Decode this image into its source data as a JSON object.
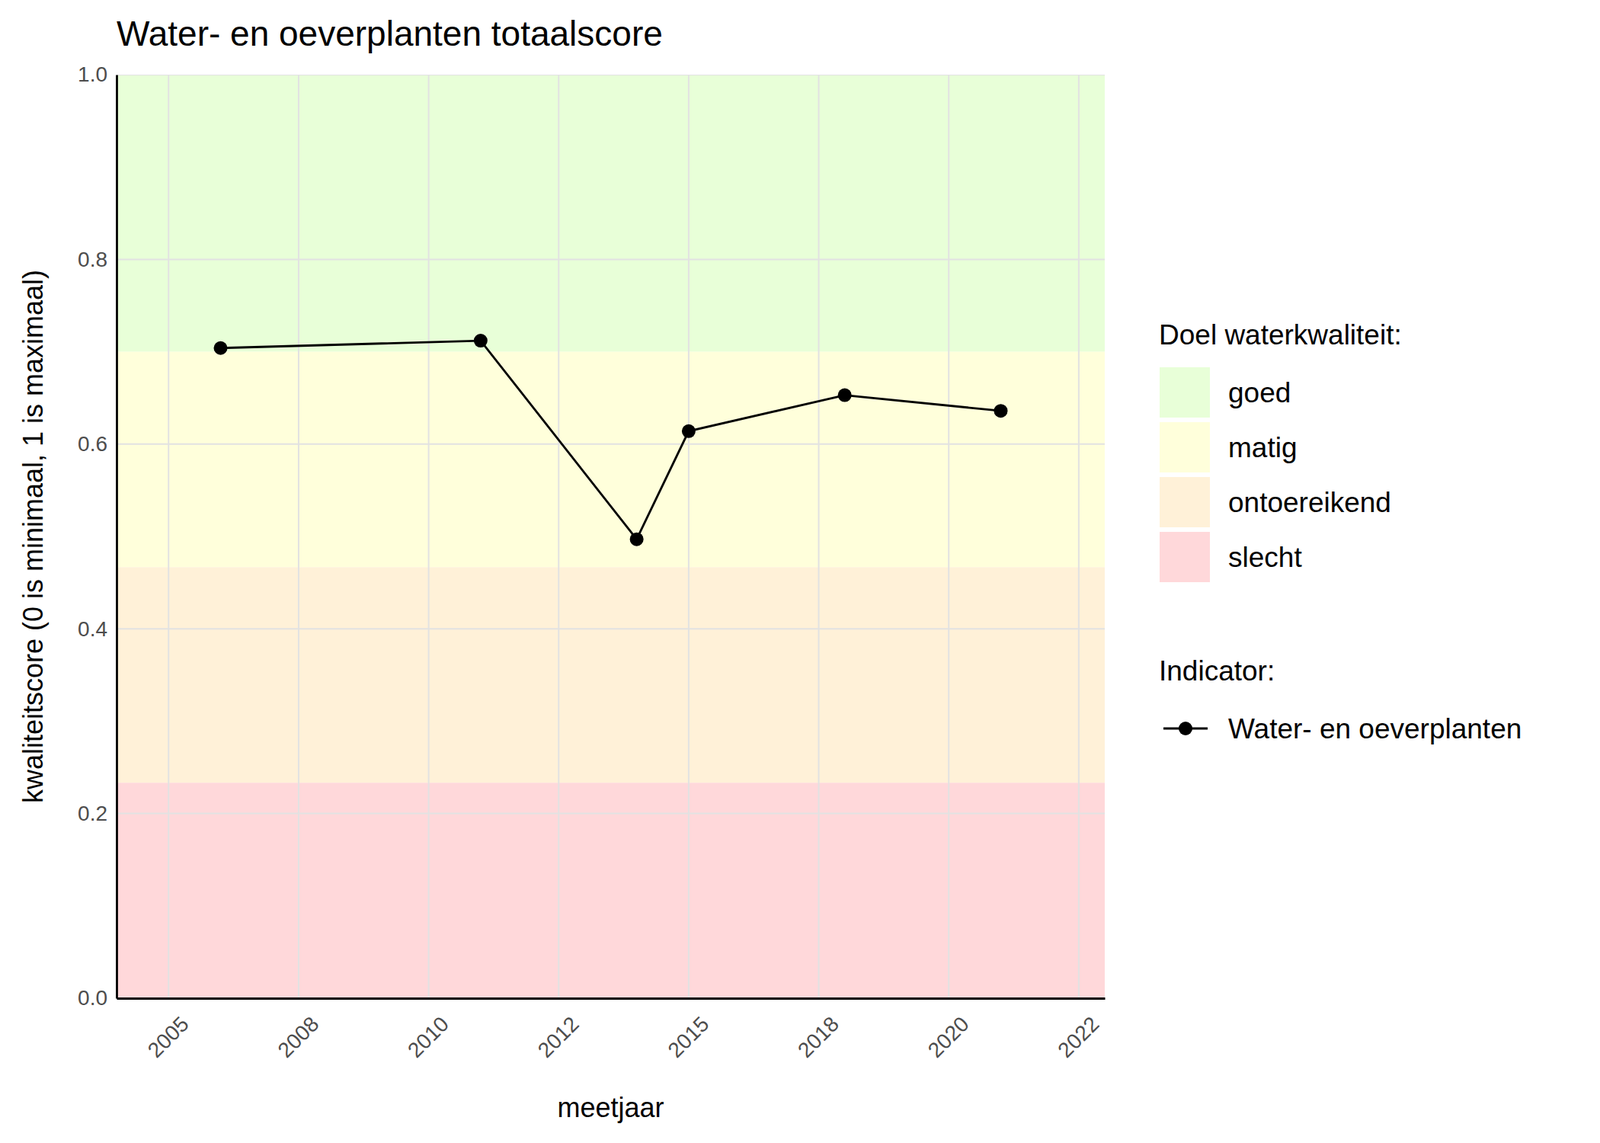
{
  "chart_data": {
    "type": "line",
    "title": "Water- en oeverplanten totaalscore",
    "x_label": "meetjaar",
    "y_label": "kwaliteitscore (0 is minimaal, 1 is maximaal)",
    "x": [
      2006,
      2011,
      2014,
      2015,
      2018,
      2021
    ],
    "series": [
      {
        "name": "Water- en oeverplanten",
        "color": "#000000",
        "marker": "circle",
        "line_style": "solid",
        "values": [
          0.704,
          0.712,
          0.497,
          0.614,
          0.653,
          0.636
        ]
      }
    ],
    "xlim": [
      2004,
      2023
    ],
    "xticks": [
      2005,
      {
        "value": 2007.5,
        "label": "2008"
      },
      2010,
      {
        "value": 2012.5,
        "label": "2012"
      },
      2015,
      {
        "value": 2017.5,
        "label": "2018"
      },
      2020,
      {
        "value": 2022.5,
        "label": "2022"
      }
    ],
    "ylim": [
      0,
      1
    ],
    "yticks": [
      {
        "value": 0,
        "label": "0.0"
      },
      0.2,
      0.4,
      0.6,
      0.8,
      {
        "value": 1,
        "label": "1.0"
      }
    ],
    "grid": true,
    "legend": "right",
    "legend_title": "Indicator:",
    "bands": {
      "title": "Doel waterkwaliteit:",
      "items": [
        {
          "name": "goed",
          "from": 0.7,
          "to": 1.0,
          "color": "#e8ffd8"
        },
        {
          "name": "matig",
          "from": 0.4667,
          "to": 0.7,
          "color": "#ffffdb"
        },
        {
          "name": "ontoereikend",
          "from": 0.2333,
          "to": 0.4667,
          "color": "#fff1d8"
        },
        {
          "name": "slecht",
          "from": 0,
          "to": 0.2333,
          "color": "#ffd8da"
        }
      ]
    }
  }
}
